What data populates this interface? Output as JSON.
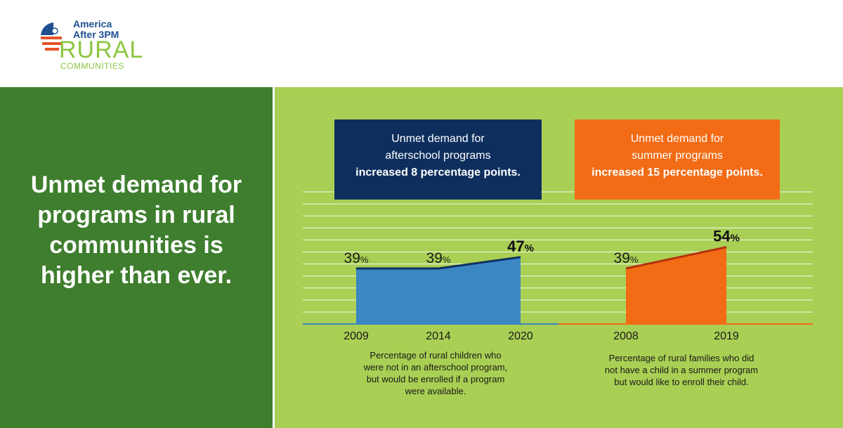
{
  "logo": {
    "line1": "America",
    "line2": "After 3PM",
    "line3": "RURAL",
    "line4": "COMMUNITIES"
  },
  "headline": {
    "lines": [
      "Unmet demand for",
      "programs in rural",
      "communities is",
      "higher than ever."
    ]
  },
  "callouts": {
    "afterschool": {
      "line1": "Unmet demand for",
      "line2": "afterschool programs",
      "line3": "increased 8 percentage points."
    },
    "summer": {
      "line1": "Unmet demand for",
      "line2": "summer programs",
      "line3": "increased 15 percentage points."
    }
  },
  "captions": {
    "afterschool": [
      "Percentage of rural children who",
      "were not in an afterschool program,",
      "but would be enrolled if a program",
      "were available."
    ],
    "summer": [
      "Percentage of rural families who did",
      "not have a child in a summer program",
      "but would like to enroll their child."
    ]
  },
  "colors": {
    "left_panel": "#3e7e2e",
    "right_panel": "#a9cf54",
    "afterschool_fill": "#3a87c4",
    "afterschool_line": "#0e2f5e",
    "summer_fill": "#f26b15",
    "summer_line": "#b5310e"
  },
  "chart_data": [
    {
      "type": "area",
      "name": "afterschool",
      "categories": [
        "2009",
        "2014",
        "2020"
      ],
      "values": [
        39,
        39,
        47
      ],
      "labels": [
        {
          "value": "39",
          "suffix": "%",
          "bold": false
        },
        {
          "value": "39",
          "suffix": "%",
          "bold": false
        },
        {
          "value": "47",
          "suffix": "%",
          "bold": true
        }
      ],
      "ylim": [
        0,
        60
      ],
      "grid": true
    },
    {
      "type": "area",
      "name": "summer",
      "categories": [
        "2008",
        "2019"
      ],
      "values": [
        39,
        54
      ],
      "labels": [
        {
          "value": "39",
          "suffix": "%",
          "bold": false
        },
        {
          "value": "54",
          "suffix": "%",
          "bold": true
        }
      ],
      "ylim": [
        0,
        60
      ],
      "grid": true
    }
  ]
}
